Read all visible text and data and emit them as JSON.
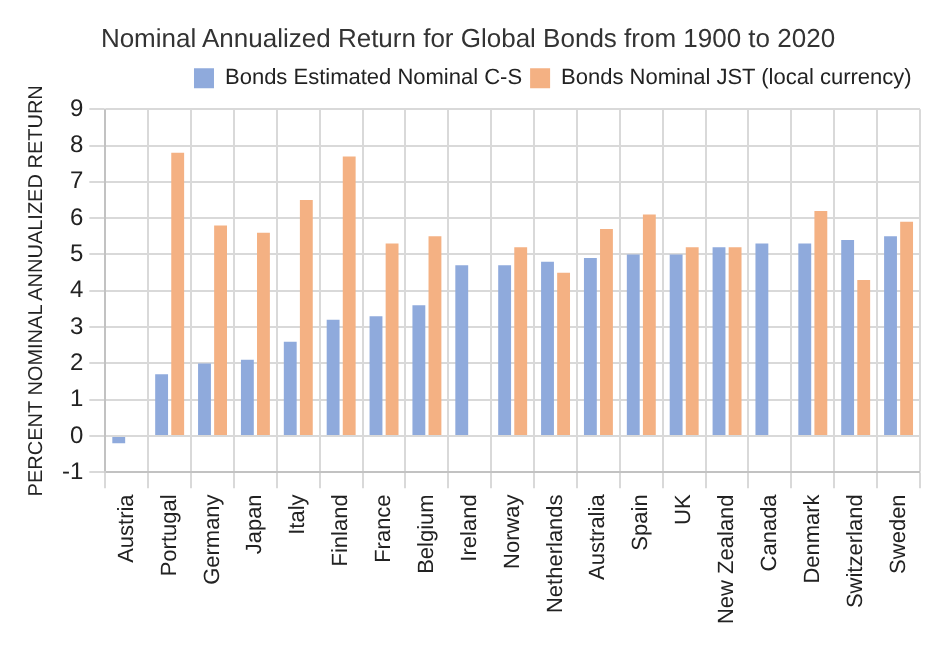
{
  "chart_data": {
    "type": "bar",
    "title": "Nominal Annualized Return for Global Bonds from 1900 to 2020",
    "ylabel": "PERCENT NOMINAL ANNUALIZED RETURN",
    "categories": [
      "Austria",
      "Portugal",
      "Germany",
      "Japan",
      "Italy",
      "Finland",
      "France",
      "Belgium",
      "Ireland",
      "Norway",
      "Netherlands",
      "Australia",
      "Spain",
      "UK",
      "New Zealand",
      "Canada",
      "Denmark",
      "Switzerland",
      "Sweden"
    ],
    "series": [
      {
        "name": "Bonds Estimated Nominal C-S",
        "color": "#8faadc",
        "values": [
          -0.2,
          1.7,
          2.0,
          2.1,
          2.6,
          3.2,
          3.3,
          3.6,
          4.7,
          4.7,
          4.8,
          4.9,
          5.0,
          5.0,
          5.2,
          5.3,
          5.3,
          5.4,
          5.5
        ]
      },
      {
        "name": "Bonds Nominal JST (local currency)",
        "color": "#f4b183",
        "values": [
          null,
          7.8,
          5.8,
          5.6,
          6.5,
          7.7,
          5.3,
          5.5,
          null,
          5.2,
          4.5,
          5.7,
          6.1,
          5.2,
          5.2,
          null,
          6.2,
          4.3,
          5.9
        ]
      }
    ],
    "ylim": [
      -1,
      9
    ],
    "yticks": [
      -1,
      0,
      1,
      2,
      3,
      4,
      5,
      6,
      7,
      8,
      9
    ],
    "grid": true,
    "legend": "top right"
  }
}
